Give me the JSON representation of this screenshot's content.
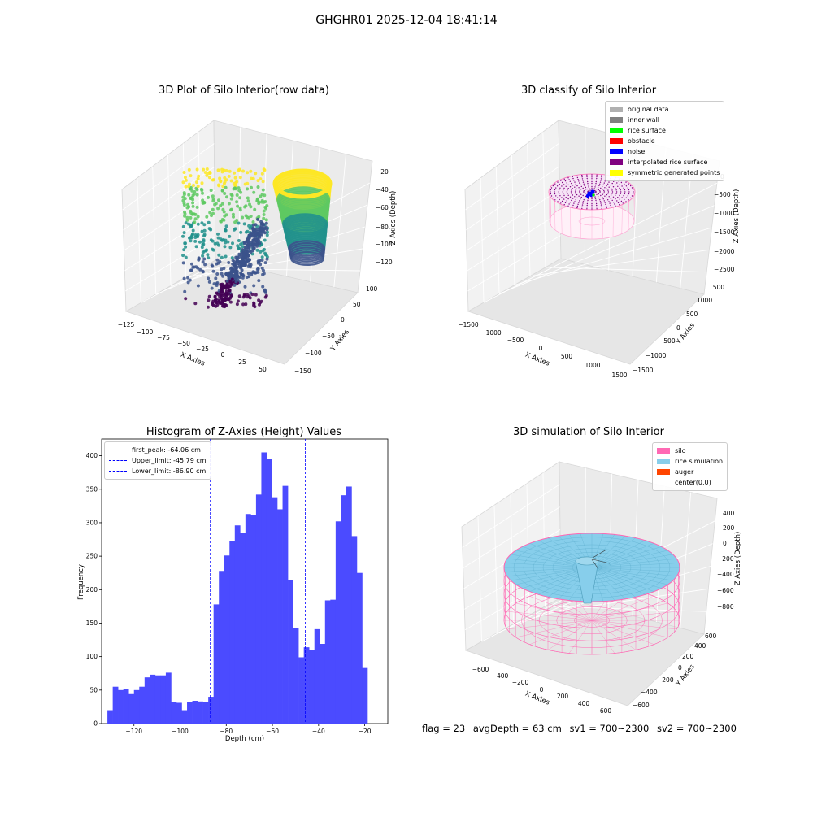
{
  "figure_title": "GHGHR01 2025-12-04 18:41:14",
  "colors": {
    "viridis": [
      "#440154",
      "#3b528b",
      "#21918c",
      "#5ec962",
      "#fde725"
    ],
    "hist_bar": "#4b4bff",
    "silo": "#ff69b4",
    "rice": "#87ceeb"
  },
  "status": {
    "flag": "flag = 23",
    "avg_depth": "avgDepth = 63 cm",
    "sv1": "sv1 = 700~2300",
    "sv2": "sv2 = 700~2300"
  },
  "chart_data": [
    {
      "type": "scatter",
      "title": "3D Plot of Silo Interior(row data)",
      "xlabel": "X Axies",
      "ylabel": "Y Axies",
      "zlabel": "Z Axies (Depth)",
      "xticks": [
        "−125",
        "−100",
        "−75",
        "−50",
        "−25",
        "0",
        "25",
        "50"
      ],
      "yticks": [
        "−150",
        "−100",
        "−50",
        "0",
        "50",
        "100"
      ],
      "zticks": [
        "−120",
        "−100",
        "−80",
        "−60",
        "−40",
        "−20"
      ],
      "xlim": [
        -130,
        60
      ],
      "ylim": [
        -150,
        110
      ],
      "zlim": [
        -130,
        -15
      ],
      "colormap": "viridis"
    },
    {
      "type": "scatter",
      "title": "3D classify of Silo Interior",
      "xlabel": "X Axies",
      "ylabel": "Y Axies",
      "zlabel": "Z Axies (Depth)",
      "xticks": [
        "−1500",
        "−1000",
        "−500",
        "0",
        "500",
        "1000",
        "1500"
      ],
      "yticks": [
        "−1500",
        "−1000",
        "−500",
        "0",
        "500",
        "1000",
        "1500"
      ],
      "zticks": [
        "−2500",
        "−2000",
        "−1500",
        "−1000",
        "−500",
        "0"
      ],
      "legend": [
        {
          "label": "original data",
          "color": "#b0b0b0"
        },
        {
          "label": "inner wall",
          "color": "#808080"
        },
        {
          "label": "rice surface",
          "color": "#00ff00"
        },
        {
          "label": "obstacle",
          "color": "#ff0000"
        },
        {
          "label": "noise",
          "color": "#0000ff"
        },
        {
          "label": "interpolated rice surface",
          "color": "#800080"
        },
        {
          "label": "symmetric generated points",
          "color": "#ffff00"
        }
      ],
      "legend_loc": "upper right"
    },
    {
      "type": "bar",
      "title": "Histogram of Z-Axies (Height) Values",
      "xlabel": "Depth (cm)",
      "ylabel": "Frequency",
      "xlim": [
        -134,
        -10
      ],
      "ylim": [
        0,
        425
      ],
      "xticks": [
        -120,
        -100,
        -80,
        -60,
        -40,
        -20
      ],
      "xtick_labels": [
        "−120",
        "−100",
        "−80",
        "−60",
        "−40",
        "−20"
      ],
      "yticks": [
        0,
        50,
        100,
        150,
        200,
        250,
        300,
        350,
        400
      ],
      "bin_start": -131.5,
      "bin_width": 2.3,
      "values": [
        20,
        55,
        50,
        51,
        44,
        50,
        55,
        69,
        73,
        72,
        72,
        76,
        32,
        31,
        20,
        32,
        34,
        33,
        32,
        40,
        178,
        228,
        251,
        272,
        296,
        285,
        313,
        311,
        342,
        405,
        395,
        338,
        320,
        355,
        214,
        143,
        99,
        114,
        110,
        141,
        119,
        184,
        185,
        302,
        341,
        354,
        280,
        225,
        83
      ],
      "vlines": [
        {
          "label": "first_peak: -64.06 cm",
          "x": -64.06,
          "color": "#ff0000"
        },
        {
          "label": "Upper_limit: -45.79 cm",
          "x": -45.79,
          "color": "#0000ff"
        },
        {
          "label": "Lower_limit: -86.90 cm",
          "x": -86.9,
          "color": "#0000ff"
        }
      ],
      "legend_loc": "upper left"
    },
    {
      "type": "scatter",
      "title": "3D simulation of Silo Interior",
      "xlabel": "X Axies",
      "ylabel": "Y Axies",
      "zlabel": "Z Axies (Depth)",
      "xticks": [
        "−600",
        "−400",
        "−200",
        "0",
        "200",
        "400",
        "600"
      ],
      "yticks": [
        "−600",
        "−400",
        "−200",
        "0",
        "200",
        "400",
        "600"
      ],
      "zticks": [
        "−800",
        "−600",
        "−400",
        "−200",
        "0",
        "200",
        "400"
      ],
      "legend": [
        {
          "label": "silo",
          "color": "#ff69b4"
        },
        {
          "label": "rice simulation",
          "color": "#87ceeb"
        },
        {
          "label": "auger",
          "color": "#ff4500"
        },
        {
          "label": "center(0,0)",
          "color": ""
        }
      ],
      "legend_loc": "upper right"
    }
  ]
}
